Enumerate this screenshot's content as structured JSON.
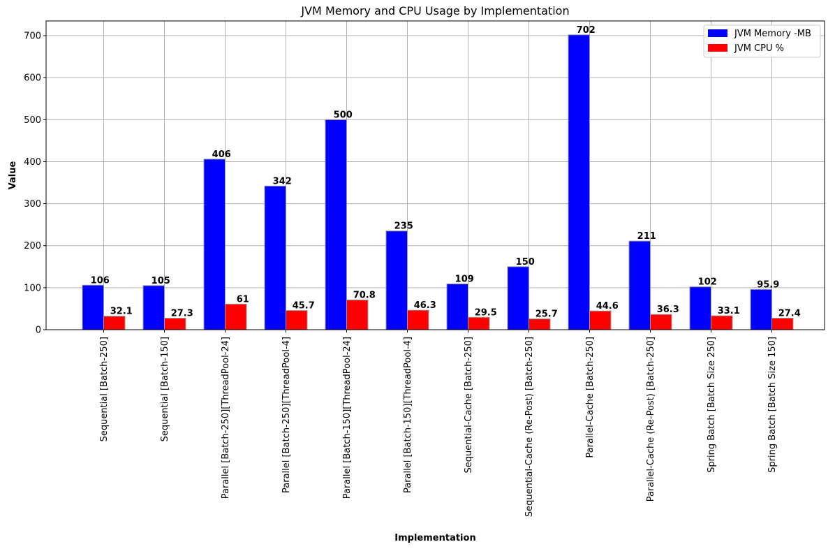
{
  "chart_data": {
    "type": "bar",
    "title": "JVM Memory and CPU Usage by Implementation",
    "xlabel": "Implementation",
    "ylabel": "Value",
    "ylim": [
      0,
      735
    ],
    "yticks": [
      0,
      100,
      200,
      300,
      400,
      500,
      600,
      700
    ],
    "grid": true,
    "legend_position": "top-right",
    "categories": [
      "Sequential [Batch-250]",
      "Sequential [Batch-150]",
      "Parallel [Batch-250][ThreadPool-24]",
      "Parallel [Batch-250][ThreadPool-4]",
      "Parallel [Batch-150][ThreadPool-24]",
      "Parallel [Batch-150][ThreadPool-4]",
      "Sequential-Cache [Batch-250]",
      "Sequential-Cache (Re-Post) [Batch-250]",
      "Parallel-Cache [Batch-250]",
      "Parallel-Cache (Re-Post) [Batch-250]",
      "Spring Batch [Batch Size 250]",
      "Spring Batch [Batch Size 150]"
    ],
    "series": [
      {
        "name": "JVM Memory -MB",
        "color": "#0000ff",
        "values": [
          106,
          105,
          406,
          342,
          500,
          235,
          109,
          150,
          702,
          211,
          102,
          95.9
        ],
        "labels": [
          "106",
          "105",
          "406",
          "342",
          "500",
          "235",
          "109",
          "150",
          "702",
          "211",
          "102",
          "95.9"
        ]
      },
      {
        "name": "JVM CPU %",
        "color": "#ff0000",
        "values": [
          32.1,
          27.3,
          61,
          45.7,
          70.8,
          46.3,
          29.5,
          25.7,
          44.6,
          36.3,
          33.1,
          27.4
        ],
        "labels": [
          "32.1",
          "27.3",
          "61",
          "45.7",
          "70.8",
          "46.3",
          "29.5",
          "25.7",
          "44.6",
          "36.3",
          "33.1",
          "27.4"
        ]
      }
    ]
  }
}
